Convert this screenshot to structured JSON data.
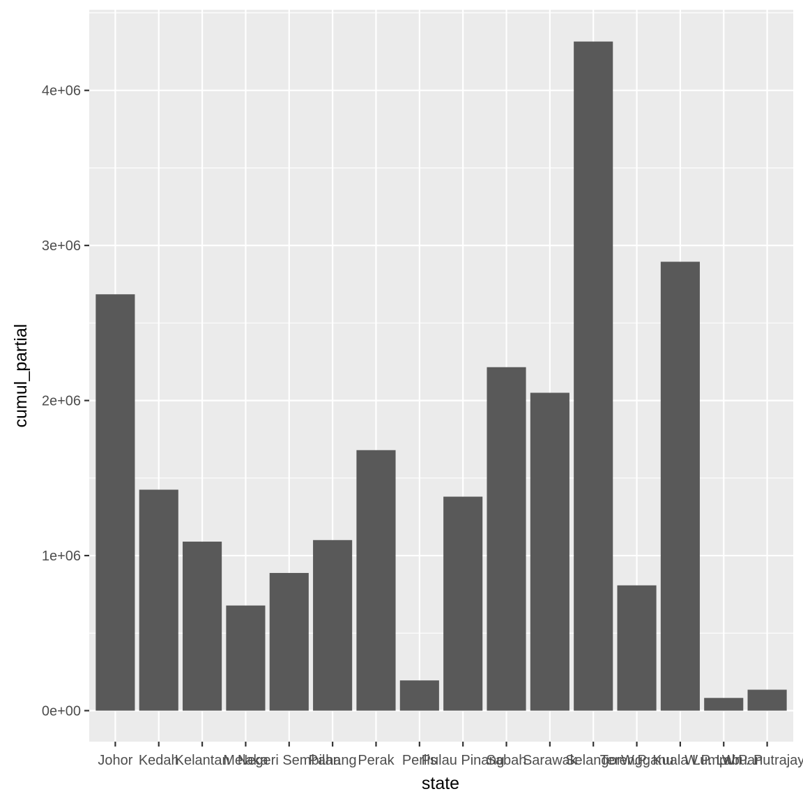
{
  "chart_data": {
    "type": "bar",
    "title": "",
    "xlabel": "state",
    "ylabel": "cumul_partial",
    "categories": [
      "Johor",
      "Kedah",
      "Kelantan",
      "Melaka",
      "Negeri Sembilan",
      "Pahang",
      "Perak",
      "Perlis",
      "Pulau Pinang",
      "Sabah",
      "Sarawak",
      "Selangor",
      "Terengganu",
      "W.P. Kuala Lumpur",
      "W.P. Labuan",
      "W.P. Putrajaya"
    ],
    "values": [
      2685000,
      1425000,
      1090000,
      678000,
      888000,
      1100000,
      1680000,
      195000,
      1380000,
      2215000,
      2050000,
      4315000,
      808000,
      2895000,
      82000,
      135000
    ],
    "ylim": [
      -200000,
      4520000
    ],
    "yticks": [
      0,
      1000000,
      2000000,
      3000000,
      4000000
    ],
    "ytick_labels": [
      "0e+00",
      "1e+06",
      "2e+06",
      "3e+06",
      "4e+06"
    ],
    "grid": true,
    "legend": "none",
    "colors": {
      "panel": "#EBEBEB",
      "grid_major": "#FFFFFF",
      "bar": "#595959",
      "tick": "#333333"
    }
  }
}
